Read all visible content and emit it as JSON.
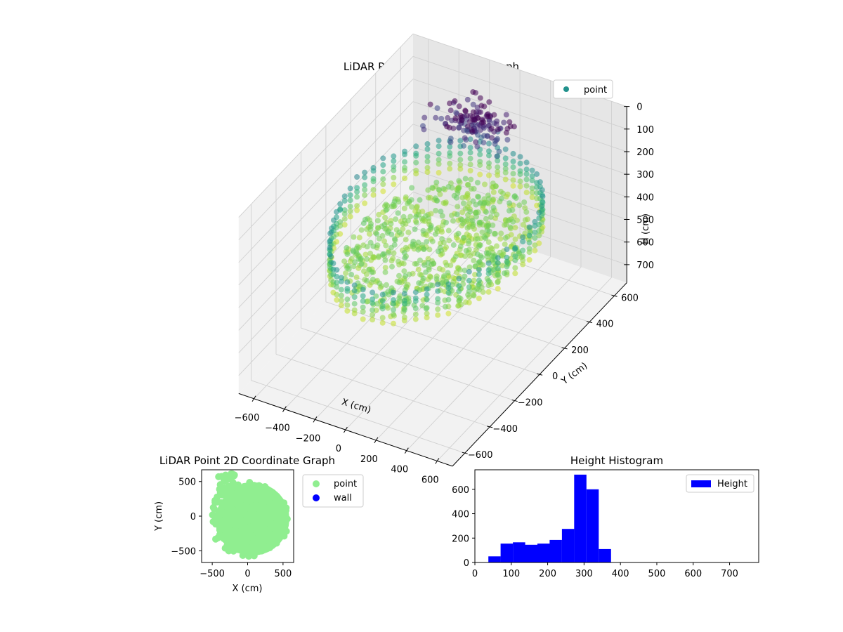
{
  "colors": {
    "legend_point_3d": "#21918c",
    "point_2d": "#90ee90",
    "wall_2d": "#0000ff",
    "histogram": "#0000ff",
    "pane_left": "#f2f2f2",
    "pane_right": "#e6e6e6",
    "pane_floor": "#f2f2f2"
  },
  "chart_data": [
    {
      "type": "scatter3d",
      "title": "LiDAR Point 3D Coordinate Graph",
      "xlabel": "X (cm)",
      "ylabel": "Y (cm)",
      "zlabel": "H (cm)",
      "xlim": [
        -700,
        700
      ],
      "ylim": [
        -700,
        700
      ],
      "zlim": [
        0,
        780
      ],
      "z_inverted": true,
      "xticks": [
        -600,
        -400,
        -200,
        0,
        200,
        400,
        600
      ],
      "yticks": [
        -600,
        -400,
        -200,
        0,
        200,
        400,
        600
      ],
      "zticks": [
        0,
        100,
        200,
        300,
        400,
        500,
        600,
        700
      ],
      "legend": [
        {
          "label": "point",
          "color": "#21918c"
        }
      ],
      "colormap": "viridis",
      "description_of_data": "ring of wall points near radius 550 cm at heights roughly 250-380 cm, a dense floor cluster near height 320-360 cm, and a dark cluster near height 80-150 cm around x=-200..100, y=300..600"
    },
    {
      "type": "scatter",
      "title": "LiDAR Point 2D Coordinate Graph",
      "xlabel": "X (cm)",
      "ylabel": "Y (cm)",
      "xlim": [
        -650,
        650
      ],
      "ylim": [
        -670,
        670
      ],
      "xticks": [
        -500,
        0,
        500
      ],
      "yticks": [
        -500,
        0,
        500
      ],
      "legend": [
        {
          "label": "point",
          "color": "#90ee90"
        },
        {
          "label": "wall",
          "color": "#0000ff"
        }
      ]
    },
    {
      "type": "bar",
      "title": "Height Histogram",
      "xlim": [
        0,
        780
      ],
      "ylim": [
        0,
        760
      ],
      "xticks": [
        0,
        100,
        200,
        300,
        400,
        500,
        600,
        700
      ],
      "yticks": [
        0,
        200,
        400,
        600
      ],
      "legend": [
        {
          "label": "Height",
          "color": "#0000ff"
        }
      ],
      "bin_width": 33.7,
      "bins": [
        {
          "start": 37,
          "value": 50
        },
        {
          "start": 70.7,
          "value": 155
        },
        {
          "start": 104.4,
          "value": 165
        },
        {
          "start": 138.1,
          "value": 145
        },
        {
          "start": 171.8,
          "value": 155
        },
        {
          "start": 205.5,
          "value": 185
        },
        {
          "start": 239.2,
          "value": 275
        },
        {
          "start": 272.9,
          "value": 720
        },
        {
          "start": 306.6,
          "value": 600
        },
        {
          "start": 340.3,
          "value": 110
        }
      ]
    }
  ]
}
